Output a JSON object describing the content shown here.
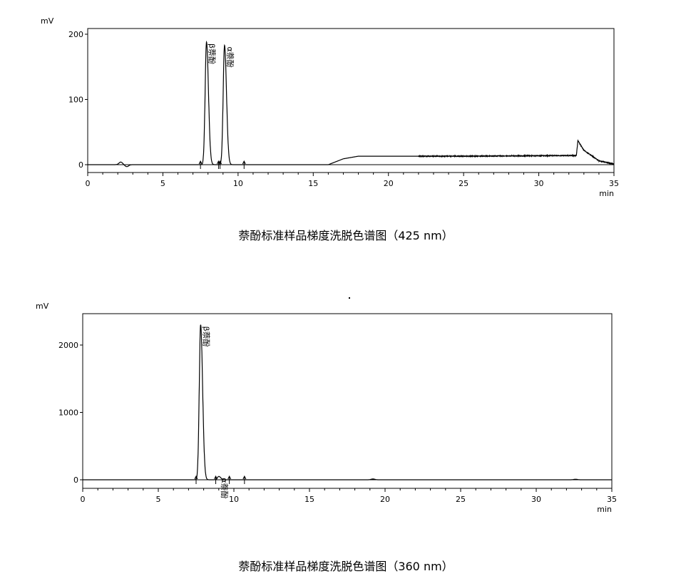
{
  "chart_data": [
    {
      "type": "line",
      "title": "萘酚标准样品梯度洗脱色谱图（425 nm）",
      "ylabel": "mV",
      "xlabel": "min",
      "xlim": [
        0,
        35
      ],
      "ylim": [
        -10,
        220
      ],
      "xticks": [
        0,
        5,
        10,
        15,
        20,
        25,
        30,
        35
      ],
      "yticks": [
        0,
        100,
        200
      ],
      "grid": false,
      "peaks": [
        {
          "label": "β萘酚",
          "rt": 7.9,
          "height": 188
        },
        {
          "label": "α萘酚",
          "rt": 9.1,
          "height": 183
        }
      ],
      "minor_features": [
        {
          "rt": 2.2,
          "height": 4
        },
        {
          "rt": 2.6,
          "height": -3
        }
      ],
      "baseline_drift": [
        [
          0,
          0
        ],
        [
          16,
          0
        ],
        [
          17,
          9
        ],
        [
          18,
          13
        ],
        [
          25,
          13
        ],
        [
          32.5,
          14
        ],
        [
          32.6,
          37
        ],
        [
          33,
          22
        ],
        [
          34,
          6
        ],
        [
          35,
          1
        ]
      ],
      "integration_marks": [
        7.5,
        8.7,
        8.8,
        10.4
      ]
    },
    {
      "type": "line",
      "title": "萘酚标准样品梯度洗脱色谱图（360 nm）",
      "ylabel": "mV",
      "xlabel": "min",
      "xlim": [
        0,
        35
      ],
      "ylim": [
        -120,
        2550
      ],
      "xticks": [
        0,
        5,
        10,
        15,
        20,
        25,
        30,
        35
      ],
      "yticks": [
        0,
        1000,
        2000
      ],
      "grid": false,
      "peaks": [
        {
          "label": "β萘酚",
          "rt": 7.8,
          "height": 2300
        },
        {
          "label": "α萘酚",
          "rt": 9.0,
          "height": 50
        }
      ],
      "minor_features": [
        {
          "rt": 19.2,
          "height": 12
        },
        {
          "rt": 32.6,
          "height": 8
        }
      ],
      "baseline_drift": [
        [
          0,
          0
        ],
        [
          35,
          0
        ]
      ],
      "integration_marks": [
        7.5,
        8.8,
        9.7,
        10.7
      ]
    }
  ]
}
